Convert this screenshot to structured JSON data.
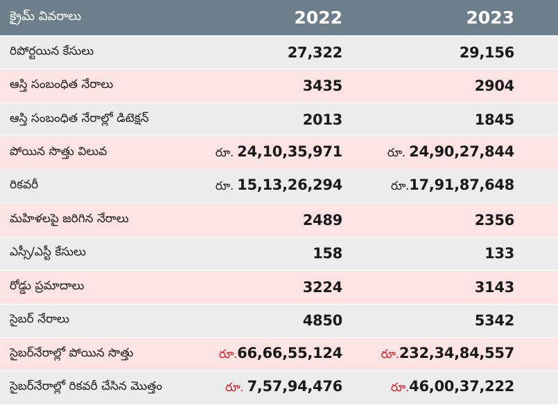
{
  "header": {
    "label": "క్రైమ్ వివరాలు",
    "year_2022": "2022",
    "year_2023": "2023"
  },
  "rows": [
    {
      "label": "రిపోర్టయిన కేసులు",
      "v2022": {
        "prefix": "",
        "value": "27,322"
      },
      "v2023": {
        "prefix": "",
        "value": "29,156"
      }
    },
    {
      "label": "ఆస్తి సంబంధిత నేరాలు",
      "v2022": {
        "prefix": "",
        "value": "3435"
      },
      "v2023": {
        "prefix": "",
        "value": "2904"
      }
    },
    {
      "label": "ఆస్తి సంబంధిత నేరాల్లో డిటెక్షన్",
      "v2022": {
        "prefix": "",
        "value": "2013"
      },
      "v2023": {
        "prefix": "",
        "value": "1845"
      }
    },
    {
      "label": "పోయిన సొత్తు విలువ",
      "v2022": {
        "prefix": "రూ. ",
        "value": "24,10,35,971"
      },
      "v2023": {
        "prefix": "రూ. ",
        "value": "24,90,27,844"
      }
    },
    {
      "label": "రికవరీ",
      "v2022": {
        "prefix": "రూ. ",
        "value": "15,13,26,294"
      },
      "v2023": {
        "prefix": "రూ.",
        "value": "17,91,87,648"
      }
    },
    {
      "label": "మహిళలపై జరిగిన నేరాలు",
      "v2022": {
        "prefix": "",
        "value": "2489"
      },
      "v2023": {
        "prefix": "",
        "value": "2356"
      }
    },
    {
      "label": "ఎస్సీ/ఎస్టీ కేసులు",
      "v2022": {
        "prefix": "",
        "value": "158"
      },
      "v2023": {
        "prefix": "",
        "value": "133"
      }
    },
    {
      "label": "రోడ్డు ప్రమాదాలు",
      "v2022": {
        "prefix": "",
        "value": "3224"
      },
      "v2023": {
        "prefix": "",
        "value": "3143"
      }
    },
    {
      "label": "సైబర్ నేరాలు",
      "v2022": {
        "prefix": "",
        "value": "4850"
      },
      "v2023": {
        "prefix": "",
        "value": "5342"
      }
    },
    {
      "label": "సైబర్‌నేరాల్లో పోయిన సొత్తు",
      "v2022": {
        "prefix": "రూ.",
        "value": "66,66,55,124"
      },
      "v2023": {
        "prefix": "రూ.",
        "value": "232,34,84,557"
      }
    },
    {
      "label": "సైబర్‌నేరాల్లో రికవరీ చేసిన మొత్తం",
      "v2022": {
        "prefix": "రూ. ",
        "value": "7,57,94,476"
      },
      "v2023": {
        "prefix": "రూ.",
        "value": "46,00,37,222"
      }
    }
  ],
  "colors": {
    "header_bg": "#6d7f8a",
    "row_grey": "#ececec",
    "row_pink": "#fde3e3",
    "currency_red": "#d8191f"
  }
}
